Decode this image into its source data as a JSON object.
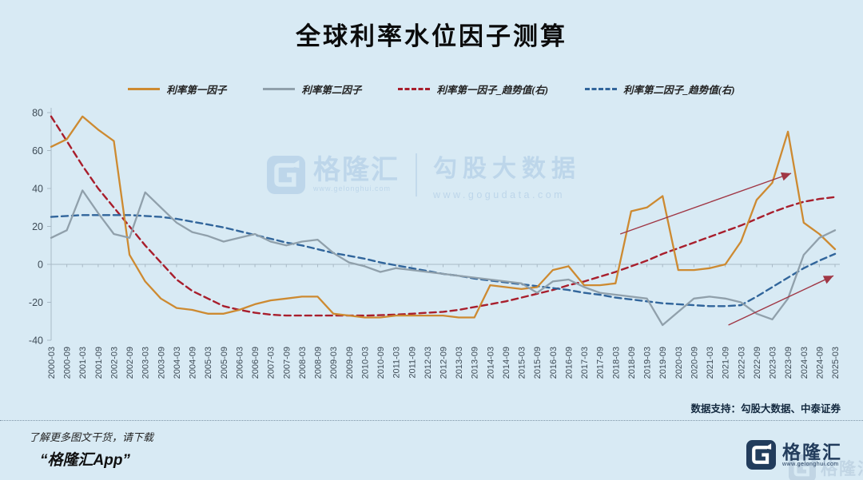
{
  "title": "全球利率水位因子测算",
  "watermark": {
    "brand": "格隆汇",
    "brand_url": "www.gelonghui.com",
    "partner": "勾股大数据",
    "partner_url": "www.gogudata.com"
  },
  "footer": {
    "support": "数据支持：勾股大数据、中泰证券",
    "promo_line1": "了解更多图文干货，请下载",
    "promo_line2": "“格隆汇App”",
    "logo_text": "格隆汇",
    "logo_url": "www.gelonghui.com"
  },
  "colors": {
    "background": "#d8eaf4",
    "factor1": "#CD8A31",
    "factor2": "#90A0AB",
    "trend1": "#A81E2C",
    "trend2": "#31659B",
    "axis": "#a9bac6",
    "arrow": "#A03745"
  },
  "chart_data": {
    "type": "line",
    "title": "全球利率水位因子测算",
    "xlabel": "",
    "ylabel": "",
    "ylim": [
      -40,
      80
    ],
    "yticks": [
      80,
      60,
      40,
      20,
      0,
      -20,
      -40
    ],
    "grid": "zero-line-only",
    "legend_position": "top",
    "categories": [
      "2000-03",
      "2000-09",
      "2001-03",
      "2001-09",
      "2002-03",
      "2002-09",
      "2003-03",
      "2003-09",
      "2004-03",
      "2004-09",
      "2005-03",
      "2005-09",
      "2006-03",
      "2006-09",
      "2007-03",
      "2007-09",
      "2008-03",
      "2008-09",
      "2009-03",
      "2009-09",
      "2010-03",
      "2010-09",
      "2011-03",
      "2011-09",
      "2012-03",
      "2012-09",
      "2013-03",
      "2013-09",
      "2014-03",
      "2014-09",
      "2015-03",
      "2015-09",
      "2016-03",
      "2016-09",
      "2017-03",
      "2017-09",
      "2018-03",
      "2018-09",
      "2019-03",
      "2019-09",
      "2020-03",
      "2020-09",
      "2021-03",
      "2021-09",
      "2022-03",
      "2022-09",
      "2023-03",
      "2023-09",
      "2024-03",
      "2024-09",
      "2025-03"
    ],
    "series": [
      {
        "name": "利率第一因子",
        "axis": "left",
        "style": "solid",
        "color": "#CD8A31",
        "values": [
          62,
          66,
          78,
          71,
          65,
          5,
          -9,
          -18,
          -23,
          -24,
          -26,
          -26,
          -24,
          -21,
          -19,
          -18,
          -17,
          -17,
          -26,
          -27,
          -28,
          -28,
          -27,
          -27,
          -27,
          -27,
          -28,
          -28,
          -11,
          -12,
          -13,
          -12,
          -3,
          -1,
          -11,
          -11,
          -10,
          28,
          30,
          36,
          -3,
          -3,
          -2,
          0,
          12,
          34,
          43,
          70,
          22,
          16,
          8
        ]
      },
      {
        "name": "利率第二因子",
        "axis": "left",
        "style": "solid",
        "color": "#90A0AB",
        "values": [
          14,
          18,
          39,
          27,
          16,
          14,
          38,
          30,
          22,
          17,
          15,
          12,
          14,
          16,
          12,
          10,
          12,
          13,
          6,
          1,
          -1,
          -4,
          -2,
          -3,
          -4,
          -5,
          -6,
          -7,
          -8,
          -9,
          -10,
          -15,
          -9,
          -8,
          -12,
          -15,
          -16,
          -17,
          -18,
          -32,
          -25,
          -18,
          -17,
          -18,
          -20,
          -26,
          -29,
          -18,
          5,
          14,
          18
        ]
      },
      {
        "name": "利率第一因子_趋势值(右)",
        "axis": "right",
        "style": "dashed",
        "color": "#A81E2C",
        "values": [
          78,
          65,
          52,
          40,
          30,
          20,
          10,
          1,
          -8,
          -14,
          -18,
          -22,
          -24,
          -25.5,
          -26.5,
          -27,
          -27,
          -27,
          -27,
          -27,
          -27,
          -26.8,
          -26.5,
          -26,
          -25.5,
          -25,
          -24,
          -22.5,
          -21,
          -19.5,
          -17.5,
          -15.5,
          -13.5,
          -11,
          -9,
          -6.5,
          -4,
          -1,
          2,
          5.5,
          8.5,
          11.5,
          14.5,
          17.5,
          20.5,
          24,
          27.5,
          30.5,
          33,
          34.5,
          35.5
        ]
      },
      {
        "name": "利率第二因子_趋势值(右)",
        "axis": "right",
        "style": "dashed",
        "color": "#31659B",
        "values": [
          25,
          25.5,
          26,
          26,
          26,
          26,
          25.5,
          25,
          24,
          22.5,
          21,
          19.5,
          17.5,
          15.5,
          13.5,
          11.5,
          10,
          8,
          6,
          4.5,
          3,
          1,
          -0.5,
          -2,
          -3.5,
          -5,
          -6,
          -7.5,
          -8.5,
          -9.5,
          -10.5,
          -11.5,
          -12.5,
          -13.5,
          -15,
          -16,
          -17.5,
          -18.5,
          -19.5,
          -20.5,
          -21,
          -21.5,
          -22,
          -22,
          -21.5,
          -17,
          -12,
          -7,
          -2,
          2,
          5.5
        ]
      }
    ],
    "annotations": [
      {
        "type": "arrow",
        "from": [
          36.3,
          16
        ],
        "to": [
          47.2,
          48
        ],
        "color": "#A03745"
      },
      {
        "type": "arrow",
        "from": [
          43.2,
          -32
        ],
        "to": [
          49.9,
          -6
        ],
        "color": "#A03745"
      }
    ]
  }
}
